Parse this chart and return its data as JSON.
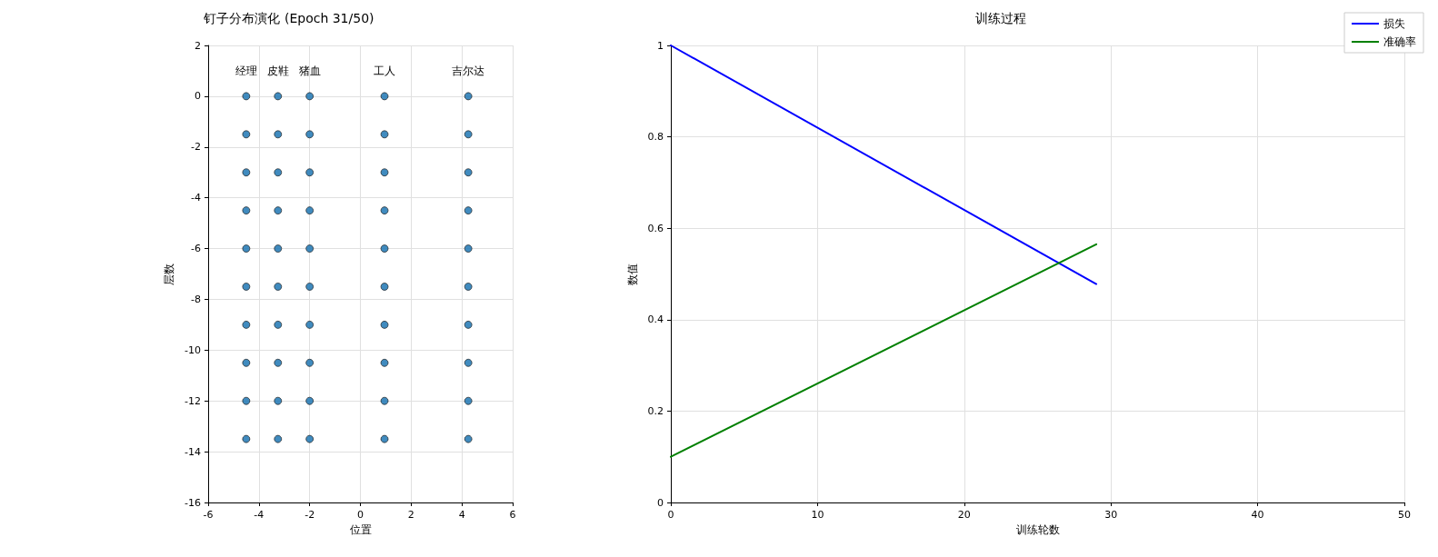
{
  "chart_data": [
    {
      "type": "scatter",
      "title": "钉子分布演化 (Epoch 31/50)",
      "xlabel": "位置",
      "ylabel": "层数",
      "marker": "circle",
      "grid": true,
      "series": [
        {
          "name": "经理",
          "color": "#1f77b4",
          "x": [
            -4.5,
            -4.5,
            -4.5,
            -4.5,
            -4.5,
            -4.5,
            -4.5,
            -4.5,
            -4.5,
            -4.5
          ],
          "values": [
            0,
            -1.5,
            -3,
            -4.5,
            -6,
            -7.5,
            -9,
            -10.5,
            -12,
            -13.5
          ]
        },
        {
          "name": "皮鞋",
          "color": "#1f77b4",
          "x": [
            -3.25,
            -3.25,
            -3.25,
            -3.25,
            -3.25,
            -3.25,
            -3.25,
            -3.25,
            -3.25,
            -3.25
          ],
          "values": [
            0,
            -1.5,
            -3,
            -4.5,
            -6,
            -7.5,
            -9,
            -10.5,
            -12,
            -13.5
          ]
        },
        {
          "name": "猪血",
          "color": "#1f77b4",
          "x": [
            -2,
            -2,
            -2,
            -2,
            -2,
            -2,
            -2,
            -2,
            -2,
            -2
          ],
          "values": [
            0,
            -1.5,
            -3,
            -4.5,
            -6,
            -7.5,
            -9,
            -10.5,
            -12,
            -13.5
          ]
        },
        {
          "name": "工人",
          "color": "#1f77b4",
          "x": [
            0.95,
            0.95,
            0.95,
            0.95,
            0.95,
            0.95,
            0.95,
            0.95,
            0.95,
            0.95
          ],
          "values": [
            0,
            -1.5,
            -3,
            -4.5,
            -6,
            -7.5,
            -9,
            -10.5,
            -12,
            -13.5
          ]
        },
        {
          "name": "吉尔达",
          "color": "#1f77b4",
          "x": [
            4.25,
            4.25,
            4.25,
            4.25,
            4.25,
            4.25,
            4.25,
            4.25,
            4.25,
            4.25
          ],
          "values": [
            0,
            -1.5,
            -3,
            -4.5,
            -6,
            -7.5,
            -9,
            -10.5,
            -12,
            -13.5
          ]
        }
      ],
      "xlim": [
        -6,
        6
      ],
      "xticks": [
        -6,
        -4,
        -2,
        0,
        2,
        4,
        6
      ],
      "ylim": [
        -16,
        2
      ],
      "yticks": [
        -16,
        -14,
        -12,
        -10,
        -8,
        -6,
        -4,
        -2,
        0,
        2
      ]
    },
    {
      "type": "line",
      "title": "训练过程",
      "xlabel": "训练轮数",
      "ylabel": "数值",
      "grid": true,
      "legend": "top right",
      "line_style": "solid",
      "series": [
        {
          "name": "损失",
          "color": "#0000ff",
          "x": [
            0,
            29
          ],
          "values": [
            1.0,
            0.478
          ]
        },
        {
          "name": "准确率",
          "color": "#008000",
          "x": [
            0,
            29
          ],
          "values": [
            0.1,
            0.565
          ]
        }
      ],
      "xlim": [
        0,
        50
      ],
      "xticks": [
        0,
        10,
        20,
        30,
        40,
        50
      ],
      "ylim": [
        0,
        1
      ],
      "yticks": [
        0,
        0.2,
        0.4,
        0.6,
        0.8,
        1.0
      ]
    }
  ]
}
